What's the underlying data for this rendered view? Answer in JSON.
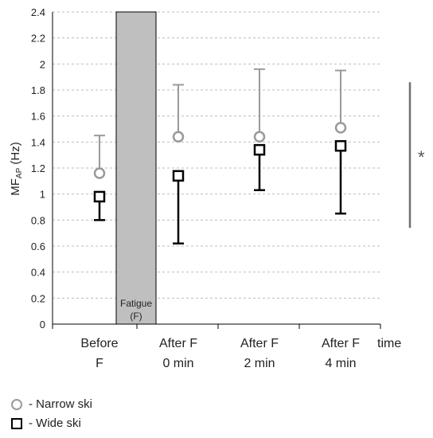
{
  "chart_data": {
    "type": "scatter",
    "ylabel_main": "MF",
    "ylabel_sub": "AP",
    "ylabel_unit": " (Hz)",
    "xlabel": "time",
    "ylim": [
      0,
      2.4
    ],
    "yticks": [
      "0",
      "0.2",
      "0.4",
      "0.6",
      "0.8",
      "1",
      "1.2",
      "1.4",
      "1.6",
      "1.8",
      "2",
      "2.2",
      "2.4"
    ],
    "categories": [
      {
        "line1": "Before",
        "line2": "F"
      },
      {
        "line1": "After F",
        "line2": "0 min"
      },
      {
        "line1": "After F",
        "line2": "2 min"
      },
      {
        "line1": "After F",
        "line2": "4 min"
      }
    ],
    "fatigue_bar": {
      "line1": "Fatigue",
      "line2": "(F)",
      "value": 2.4
    },
    "series": [
      {
        "name": "Narrow ski",
        "marker": "circle",
        "color": "#9a9a9a",
        "values": [
          1.16,
          1.44,
          1.44,
          1.51
        ],
        "err_upper": [
          1.45,
          1.84,
          1.96,
          1.95
        ],
        "err_lower": [
          1.16,
          1.44,
          1.44,
          1.51
        ]
      },
      {
        "name": "Wide ski",
        "marker": "square",
        "color": "#000000",
        "values": [
          0.98,
          1.14,
          1.34,
          1.37
        ],
        "err_upper": [
          0.98,
          1.14,
          1.34,
          1.37
        ],
        "err_lower": [
          0.8,
          0.62,
          1.03,
          0.85
        ]
      }
    ],
    "significance": {
      "symbol": "*",
      "from": 0.74,
      "to": 1.86
    },
    "grid": true
  },
  "legend": {
    "narrow_label": "- Narrow ski",
    "wide_label": "- Wide ski"
  }
}
